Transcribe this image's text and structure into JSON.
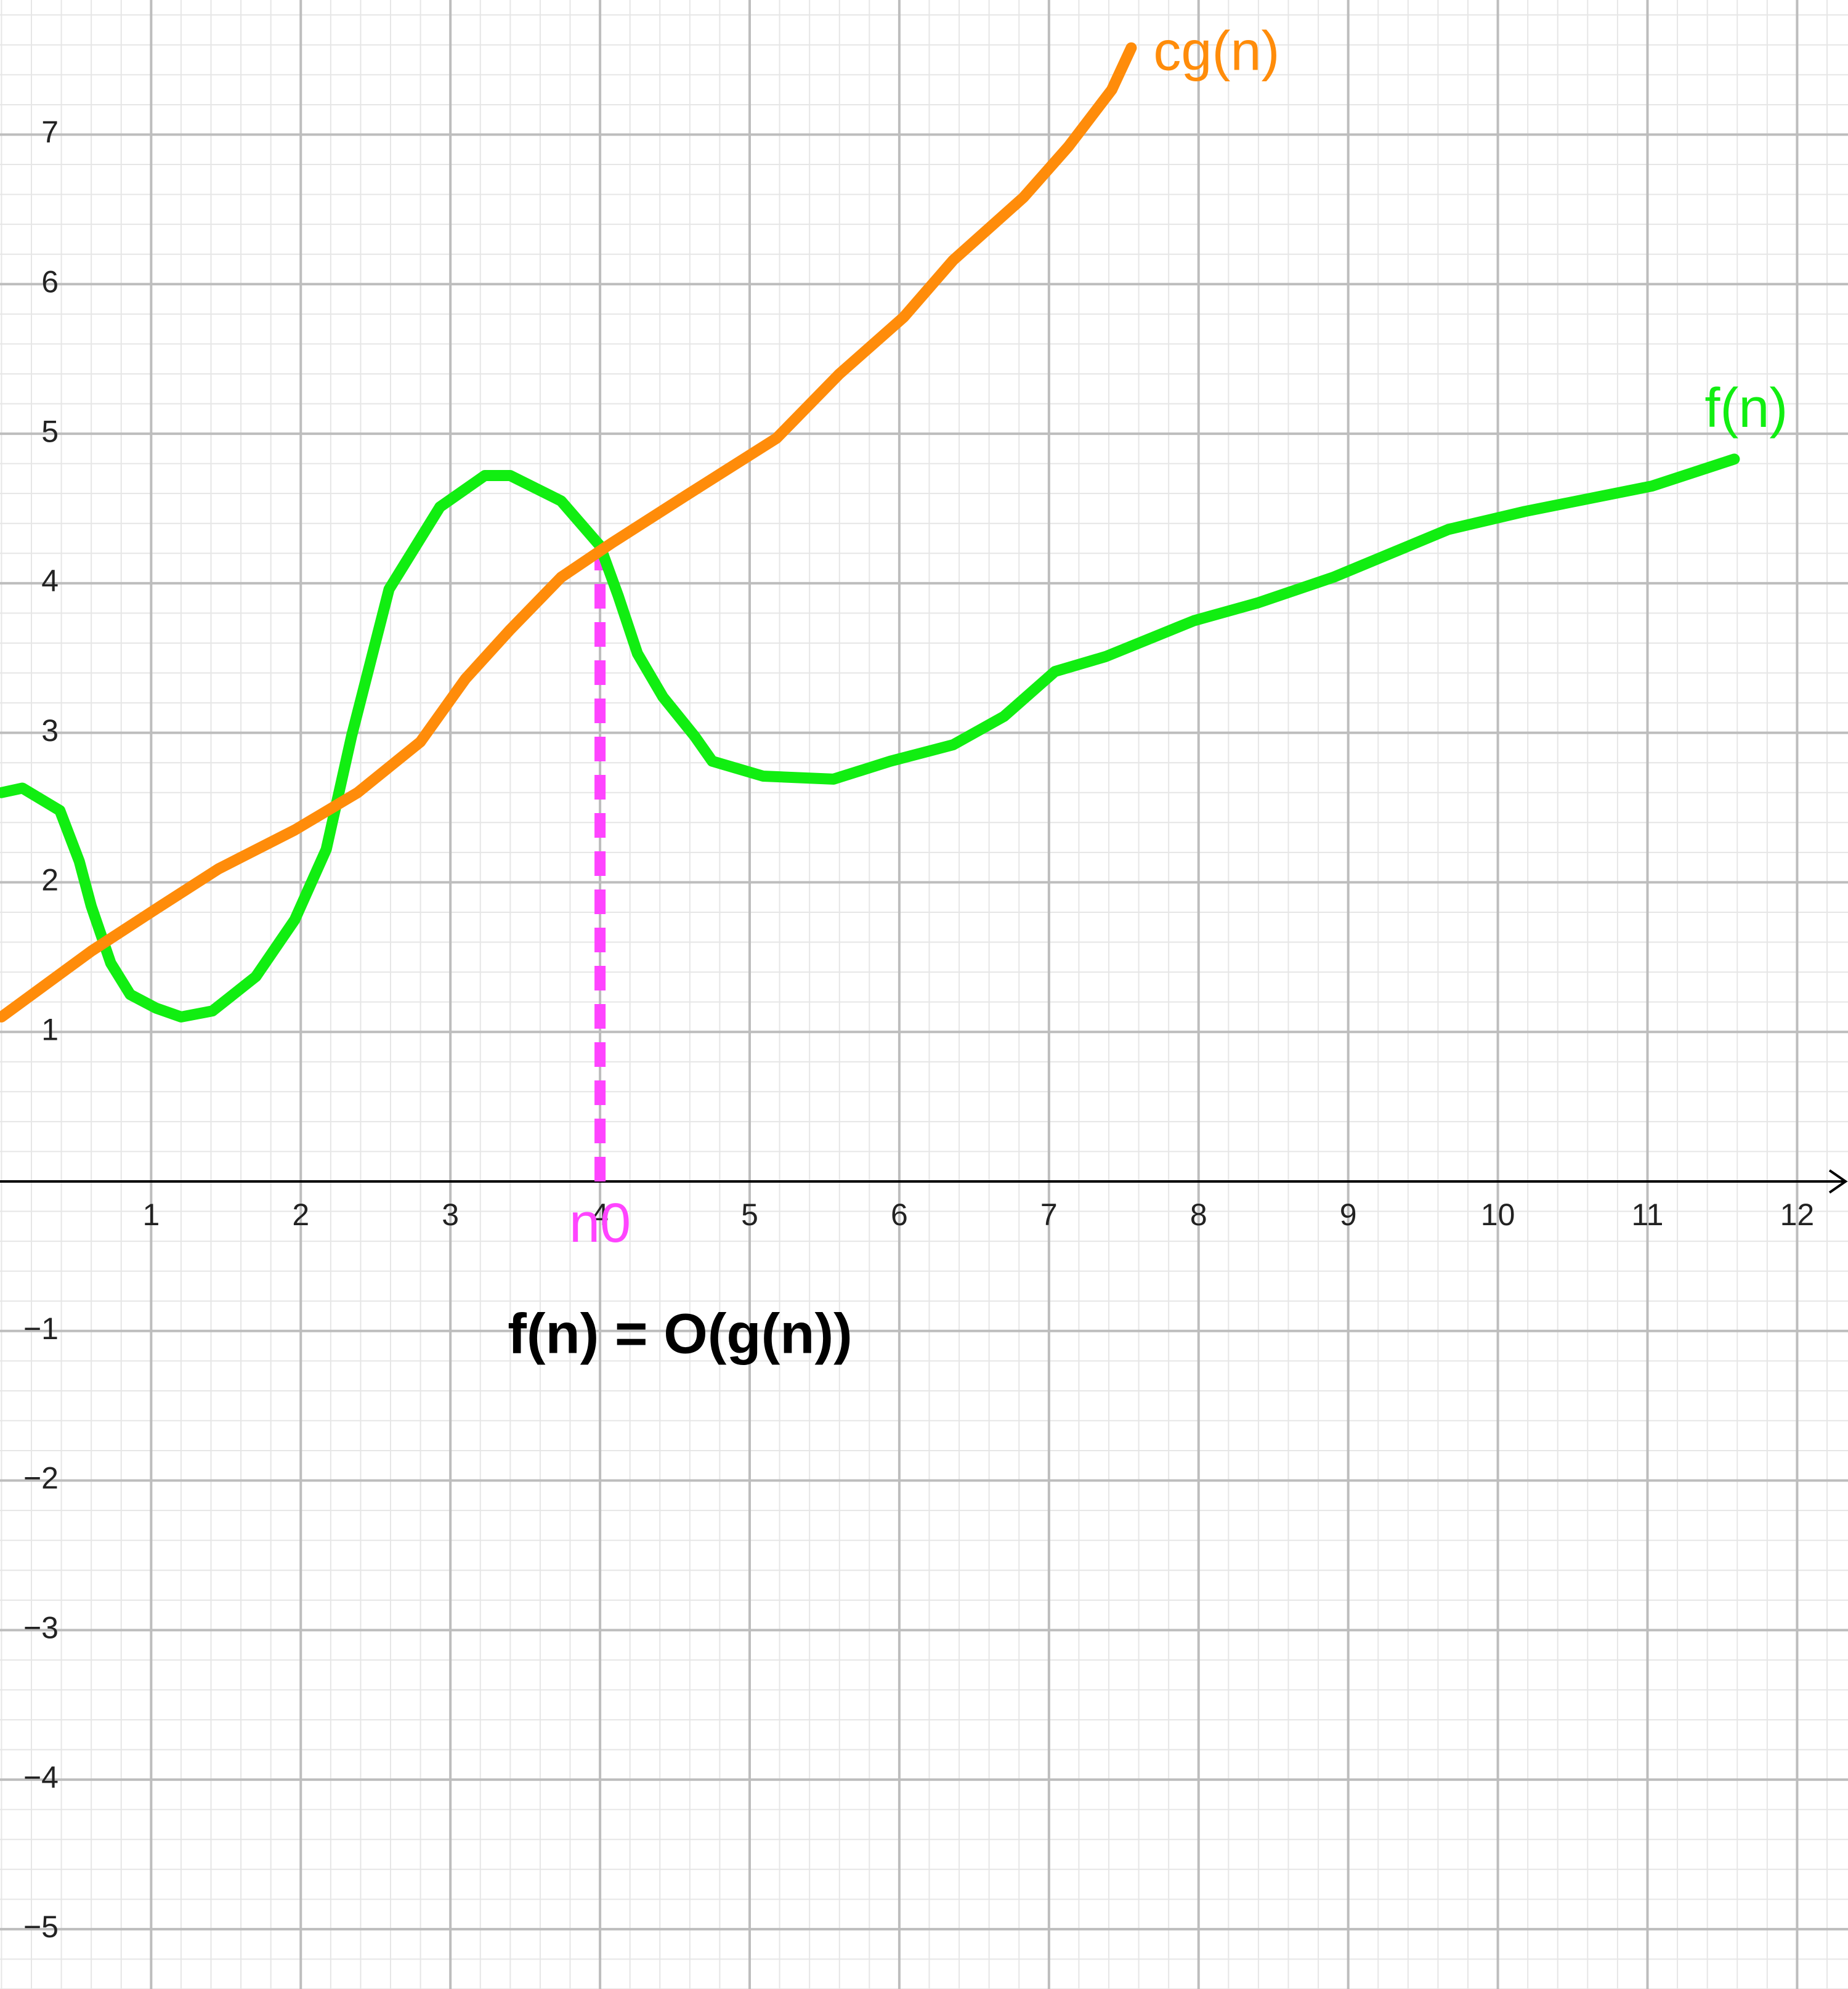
{
  "chart_data": {
    "type": "line",
    "annotation": "f(n) = O(g(n))",
    "xlim": [
      -0.01,
      12.34
    ],
    "ylim": [
      -5.4,
      7.9
    ],
    "xticks": [
      1,
      2,
      3,
      4,
      5,
      6,
      7,
      8,
      9,
      10,
      11,
      12
    ],
    "yticks": [
      {
        "value": -5,
        "label": "−5"
      },
      {
        "value": -4,
        "label": "−4"
      },
      {
        "value": -3,
        "label": "−3"
      },
      {
        "value": -2,
        "label": "−2"
      },
      {
        "value": -1,
        "label": "−1"
      },
      1,
      2,
      3,
      4,
      5,
      6,
      7
    ],
    "grid": true,
    "minor_divisions": 5,
    "series": [
      {
        "name": "f(n)",
        "color": "#11ee11",
        "x": [
          0,
          0.14,
          0.39,
          0.52,
          0.6,
          0.73,
          0.86,
          1.03,
          1.2,
          1.41,
          1.7,
          1.96,
          2.17,
          2.34,
          2.47,
          2.59,
          2.93,
          3.23,
          3.4,
          3.74,
          4.0,
          4.12,
          4.25,
          4.42,
          4.63,
          4.75,
          5.09,
          5.56,
          5.94,
          6.36,
          6.7,
          7.04,
          7.38,
          7.97,
          8.4,
          8.9,
          9.67,
          10.18,
          11.03,
          11.58
        ],
        "values": [
          2.6,
          2.63,
          2.48,
          2.14,
          1.84,
          1.46,
          1.25,
          1.16,
          1.1,
          1.14,
          1.37,
          1.75,
          2.22,
          2.98,
          3.49,
          3.96,
          4.51,
          4.72,
          4.72,
          4.55,
          4.25,
          3.92,
          3.53,
          3.24,
          2.98,
          2.81,
          2.71,
          2.69,
          2.81,
          2.92,
          3.11,
          3.41,
          3.51,
          3.75,
          3.87,
          4.04,
          4.36,
          4.48,
          4.65,
          4.83
        ]
      },
      {
        "name": "cg(n)",
        "color": "#ff8c0a",
        "x": [
          0,
          0.6,
          1.03,
          1.45,
          1.96,
          2.38,
          2.8,
          3.1,
          3.4,
          3.74,
          4.08,
          4.58,
          5.18,
          5.6,
          6.03,
          6.36,
          6.83,
          7.13,
          7.42,
          7.55
        ],
        "values": [
          1.1,
          1.54,
          1.82,
          2.09,
          2.35,
          2.6,
          2.94,
          3.36,
          3.69,
          4.04,
          4.27,
          4.59,
          4.97,
          5.4,
          5.78,
          6.16,
          6.58,
          6.92,
          7.3,
          7.58
        ]
      }
    ],
    "marker": {
      "label": "n0",
      "x": 4,
      "y": 4.25,
      "color": "#ff44ff"
    }
  }
}
